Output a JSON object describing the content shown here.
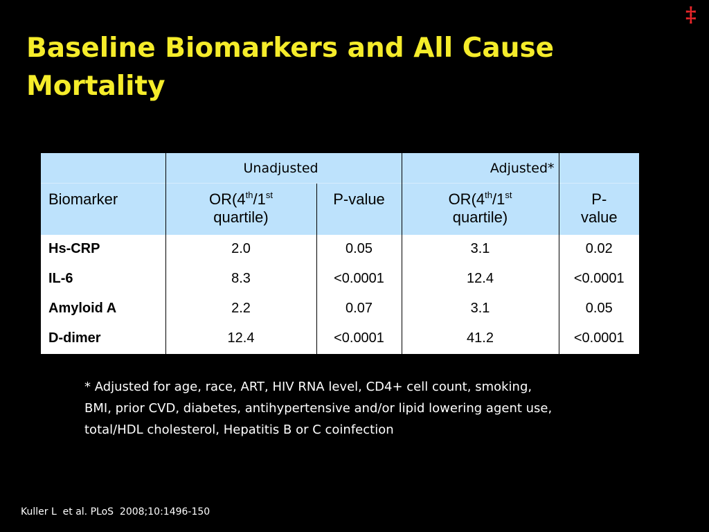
{
  "slide": {
    "marker": "‡",
    "title_line1": "Baseline Biomarkers  and All Cause",
    "title_line2": "Mortality",
    "footnote": "* Adjusted for age, race, ART, HIV RNA level, CD4+ cell count, smoking, BMI, prior CVD, diabetes, antihypertensive and/or lipid lowering agent use, total/HDL cholesterol, Hepatitis B or C coinfection",
    "citation": "Kuller L  et al. PLoS  2008;10:1496-150",
    "colors": {
      "background": "#000000",
      "title": "#f5ec2a",
      "marker": "#e8262a",
      "header_fill": "#bde2fc"
    }
  },
  "table": {
    "group_headers": {
      "unadjusted": "Unadjusted",
      "adjusted": "Adjusted*"
    },
    "columns": {
      "biomarker": "Biomarker",
      "or_prefix": "OR(4",
      "or_sup1": "th",
      "or_mid": "/1",
      "or_sup2": "st",
      "or_suffix": "quartile)",
      "pvalue_unadj": "P-value",
      "pvalue_adj_line1": "P-",
      "pvalue_adj_line2": "value"
    },
    "rows": [
      {
        "name": "Hs-CRP",
        "or_unadj": "2.0",
        "p_unadj": "0.05",
        "or_adj": "3.1",
        "p_adj": "0.02"
      },
      {
        "name": "IL-6",
        "or_unadj": "8.3",
        "p_unadj": "<0.0001",
        "or_adj": "12.4",
        "p_adj": "<0.0001"
      },
      {
        "name": "Amyloid A",
        "or_unadj": "2.2",
        "p_unadj": "0.07",
        "or_adj": "3.1",
        "p_adj": "0.05"
      },
      {
        "name": "D-dimer",
        "or_unadj": "12.4",
        "p_unadj": "<0.0001",
        "or_adj": "41.2",
        "p_adj": "<0.0001"
      }
    ]
  }
}
